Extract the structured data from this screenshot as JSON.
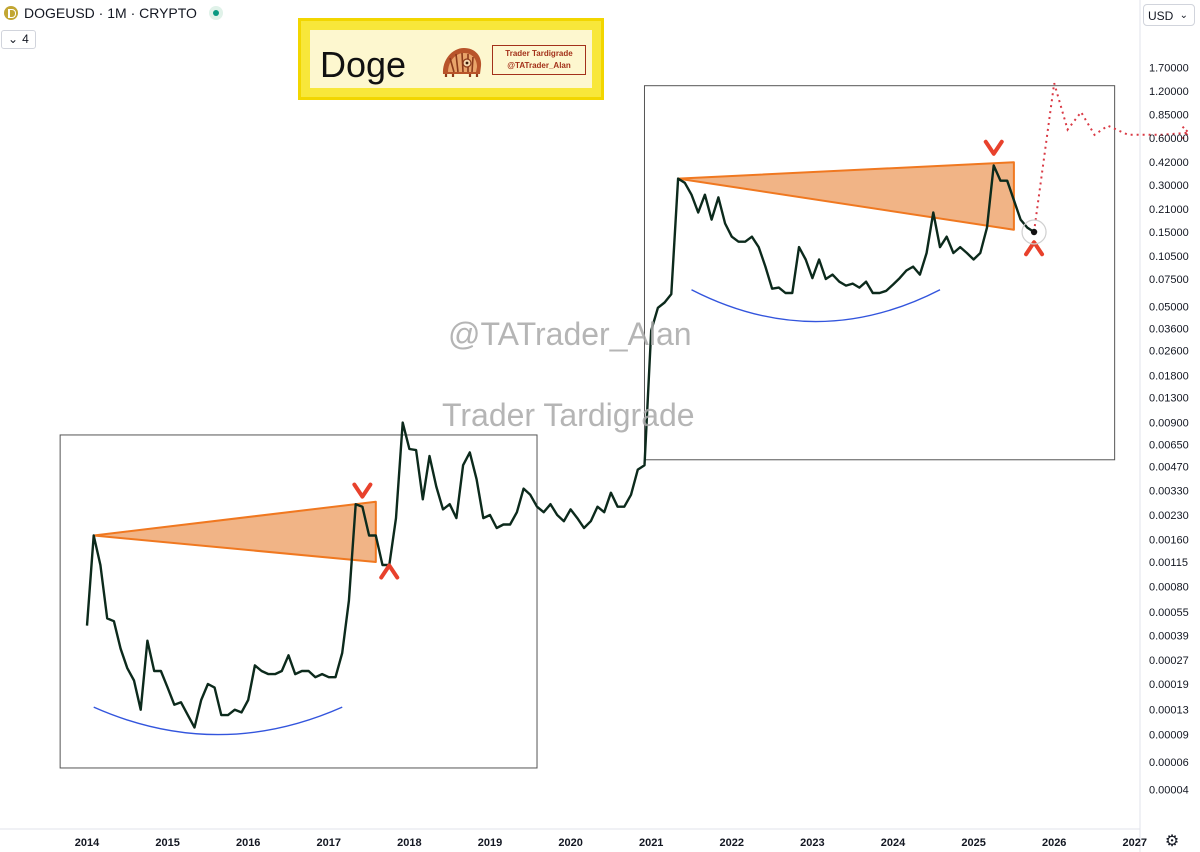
{
  "header": {
    "symbol": "DOGEUSD · 1M · CRYPTO",
    "indicator_count": "4",
    "currency": "USD"
  },
  "logo": {
    "title": "Doge",
    "badge_line1": "Trader Tardigrade",
    "badge_line2": "@TATrader_Alan"
  },
  "watermarks": {
    "handle": "@TATrader_Alan",
    "name": "Trader Tardigrade"
  },
  "icons": {
    "coin": "doge-coin-icon",
    "live": "live-status-icon",
    "chevron": "chevron-down-icon",
    "settings": "gear-icon",
    "mascot": "tardigrade-mascot-icon"
  },
  "colors": {
    "price_line": "#0c2a1c",
    "wedge_fill": "#f0b080",
    "wedge_stroke": "#f07820",
    "arc": "#3355dd",
    "marker": "#e8412c",
    "projection": "#d93a45",
    "box": "#555555"
  },
  "chart_data": {
    "type": "line",
    "x_axis": {
      "ticks": [
        "2014",
        "2015",
        "2016",
        "2017",
        "2018",
        "2019",
        "2020",
        "2021",
        "2022",
        "2023",
        "2024",
        "2025",
        "2026",
        "2027"
      ]
    },
    "y_axis": {
      "scale": "log",
      "ticks": [
        "1.70000",
        "1.20000",
        "0.85000",
        "0.60000",
        "0.42000",
        "0.30000",
        "0.21000",
        "0.15000",
        "0.10500",
        "0.07500",
        "0.05000",
        "0.03600",
        "0.02600",
        "0.01800",
        "0.01300",
        "0.00900",
        "0.00650",
        "0.00470",
        "0.00330",
        "0.00230",
        "0.00160",
        "0.00115",
        "0.00080",
        "0.00055",
        "0.00039",
        "0.00027",
        "0.00019",
        "0.00013",
        "0.00009",
        "0.00006",
        "0.00004"
      ]
    },
    "series": [
      {
        "values": [
          [
            "2014-01",
            0.00045
          ],
          [
            "2014-02",
            0.0017
          ],
          [
            "2014-03",
            0.0011
          ],
          [
            "2014-04",
            0.0005
          ],
          [
            "2014-05",
            0.00048
          ],
          [
            "2014-06",
            0.00032
          ],
          [
            "2014-07",
            0.00024
          ],
          [
            "2014-08",
            0.0002
          ],
          [
            "2014-09",
            0.00013
          ],
          [
            "2014-10",
            0.00036
          ],
          [
            "2014-11",
            0.00023
          ],
          [
            "2014-12",
            0.00023
          ],
          [
            "2015-01",
            0.00018
          ],
          [
            "2015-02",
            0.00014
          ],
          [
            "2015-03",
            0.000145
          ],
          [
            "2015-04",
            0.00012
          ],
          [
            "2015-05",
            0.0001
          ],
          [
            "2015-06",
            0.00015
          ],
          [
            "2015-07",
            0.00019
          ],
          [
            "2015-08",
            0.00018
          ],
          [
            "2015-09",
            0.00012
          ],
          [
            "2015-10",
            0.00012
          ],
          [
            "2015-11",
            0.00013
          ],
          [
            "2015-12",
            0.000125
          ],
          [
            "2016-01",
            0.00015
          ],
          [
            "2016-02",
            0.00025
          ],
          [
            "2016-03",
            0.00023
          ],
          [
            "2016-04",
            0.00022
          ],
          [
            "2016-05",
            0.00022
          ],
          [
            "2016-06",
            0.00023
          ],
          [
            "2016-07",
            0.00029
          ],
          [
            "2016-08",
            0.00022
          ],
          [
            "2016-09",
            0.00023
          ],
          [
            "2016-10",
            0.00023
          ],
          [
            "2016-11",
            0.00021
          ],
          [
            "2016-12",
            0.00022
          ],
          [
            "2017-01",
            0.00021
          ],
          [
            "2017-02",
            0.00021
          ],
          [
            "2017-03",
            0.0003
          ],
          [
            "2017-04",
            0.00065
          ],
          [
            "2017-05",
            0.0027
          ],
          [
            "2017-06",
            0.0026
          ],
          [
            "2017-07",
            0.0017
          ],
          [
            "2017-08",
            0.0017
          ],
          [
            "2017-09",
            0.0011
          ],
          [
            "2017-10",
            0.0011
          ],
          [
            "2017-11",
            0.0022
          ],
          [
            "2017-12",
            0.009
          ],
          [
            "2018-01",
            0.0061
          ],
          [
            "2018-02",
            0.006
          ],
          [
            "2018-03",
            0.0029
          ],
          [
            "2018-04",
            0.0055
          ],
          [
            "2018-05",
            0.0035
          ],
          [
            "2018-06",
            0.0025
          ],
          [
            "2018-07",
            0.0027
          ],
          [
            "2018-08",
            0.0022
          ],
          [
            "2018-09",
            0.0048
          ],
          [
            "2018-10",
            0.0058
          ],
          [
            "2018-11",
            0.0039
          ],
          [
            "2018-12",
            0.0022
          ],
          [
            "2019-01",
            0.0023
          ],
          [
            "2019-02",
            0.0019
          ],
          [
            "2019-03",
            0.002
          ],
          [
            "2019-04",
            0.002
          ],
          [
            "2019-05",
            0.0024
          ],
          [
            "2019-06",
            0.0034
          ],
          [
            "2019-07",
            0.0031
          ],
          [
            "2019-08",
            0.0026
          ],
          [
            "2019-09",
            0.0024
          ],
          [
            "2019-10",
            0.0027
          ],
          [
            "2019-11",
            0.0023
          ],
          [
            "2019-12",
            0.0021
          ],
          [
            "2020-01",
            0.0025
          ],
          [
            "2020-02",
            0.0022
          ],
          [
            "2020-03",
            0.0019
          ],
          [
            "2020-04",
            0.0021
          ],
          [
            "2020-05",
            0.0026
          ],
          [
            "2020-06",
            0.0024
          ],
          [
            "2020-07",
            0.0032
          ],
          [
            "2020-08",
            0.0026
          ],
          [
            "2020-09",
            0.0026
          ],
          [
            "2020-10",
            0.0031
          ],
          [
            "2020-11",
            0.0045
          ],
          [
            "2020-12",
            0.0048
          ],
          [
            "2021-01",
            0.035
          ],
          [
            "2021-02",
            0.049
          ],
          [
            "2021-03",
            0.053
          ],
          [
            "2021-04",
            0.06
          ],
          [
            "2021-05",
            0.33
          ],
          [
            "2021-06",
            0.31
          ],
          [
            "2021-07",
            0.26
          ],
          [
            "2021-08",
            0.2
          ],
          [
            "2021-09",
            0.26
          ],
          [
            "2021-10",
            0.18
          ],
          [
            "2021-11",
            0.25
          ],
          [
            "2021-12",
            0.17
          ],
          [
            "2022-01",
            0.14
          ],
          [
            "2022-02",
            0.13
          ],
          [
            "2022-03",
            0.13
          ],
          [
            "2022-04",
            0.14
          ],
          [
            "2022-05",
            0.12
          ],
          [
            "2022-06",
            0.09
          ],
          [
            "2022-07",
            0.065
          ],
          [
            "2022-08",
            0.066
          ],
          [
            "2022-09",
            0.061
          ],
          [
            "2022-10",
            0.061
          ],
          [
            "2022-11",
            0.12
          ],
          [
            "2022-12",
            0.1
          ],
          [
            "2023-01",
            0.076
          ],
          [
            "2023-02",
            0.1
          ],
          [
            "2023-03",
            0.075
          ],
          [
            "2023-04",
            0.08
          ],
          [
            "2023-05",
            0.072
          ],
          [
            "2023-06",
            0.068
          ],
          [
            "2023-07",
            0.07
          ],
          [
            "2023-08",
            0.066
          ],
          [
            "2023-09",
            0.072
          ],
          [
            "2023-10",
            0.061
          ],
          [
            "2023-11",
            0.061
          ],
          [
            "2023-12",
            0.063
          ],
          [
            "2024-01",
            0.069
          ],
          [
            "2024-02",
            0.076
          ],
          [
            "2024-03",
            0.085
          ],
          [
            "2024-04",
            0.09
          ],
          [
            "2024-05",
            0.08
          ],
          [
            "2024-06",
            0.11
          ],
          [
            "2024-07",
            0.2
          ],
          [
            "2024-08",
            0.12
          ],
          [
            "2024-09",
            0.14
          ],
          [
            "2024-10",
            0.11
          ],
          [
            "2024-11",
            0.12
          ],
          [
            "2024-12",
            0.11
          ],
          [
            "2025-01",
            0.1
          ],
          [
            "2025-02",
            0.11
          ],
          [
            "2025-03",
            0.16
          ],
          [
            "2025-04",
            0.4
          ],
          [
            "2025-05",
            0.32
          ],
          [
            "2025-06",
            0.32
          ],
          [
            "2025-07",
            0.24
          ],
          [
            "2025-08",
            0.18
          ],
          [
            "2025-09",
            0.16
          ],
          [
            "2025-10",
            0.15
          ]
        ]
      }
    ],
    "projection": [
      [
        "2025-10",
        0.15
      ],
      [
        "2026-01",
        1.35
      ],
      [
        "2026-03",
        0.68
      ],
      [
        "2026-05",
        0.88
      ],
      [
        "2026-07",
        0.63
      ],
      [
        "2026-09",
        0.72
      ],
      [
        "2026-12",
        0.63
      ],
      [
        "2027-05",
        0.63
      ],
      [
        "2027-09",
        0.65
      ]
    ],
    "annotations": {
      "cycle_boxes": [
        {
          "x": [
            "2013-09",
            "2019-08"
          ],
          "y": [
            5.5e-05,
            0.0075
          ]
        },
        {
          "x": [
            "2020-12",
            "2026-10"
          ],
          "y": [
            0.0052,
            1.3
          ]
        }
      ],
      "wedges": [
        {
          "points": [
            [
              "2014-02",
              0.0017
            ],
            [
              "2017-08",
              0.0028
            ],
            [
              "2017-08",
              0.00115
            ]
          ]
        },
        {
          "points": [
            [
              "2021-05",
              0.33
            ],
            [
              "2025-07",
              0.42
            ],
            [
              "2025-07",
              0.155
            ]
          ]
        }
      ],
      "rounded_bottoms": [
        {
          "x": [
            "2014-02",
            "2017-03"
          ],
          "y_ends": 0.000135,
          "y_low": 9e-05
        },
        {
          "x": [
            "2021-07",
            "2024-08"
          ],
          "y_ends": 0.064,
          "y_low": 0.04
        }
      ],
      "top_markers": [
        [
          "2017-06",
          0.0033
        ],
        [
          "2025-04",
          0.52
        ]
      ],
      "bottom_markers": [
        [
          "2017-10",
          0.001
        ],
        [
          "2025-10",
          0.118
        ]
      ],
      "current_point": [
        "2025-10",
        0.15
      ]
    }
  }
}
